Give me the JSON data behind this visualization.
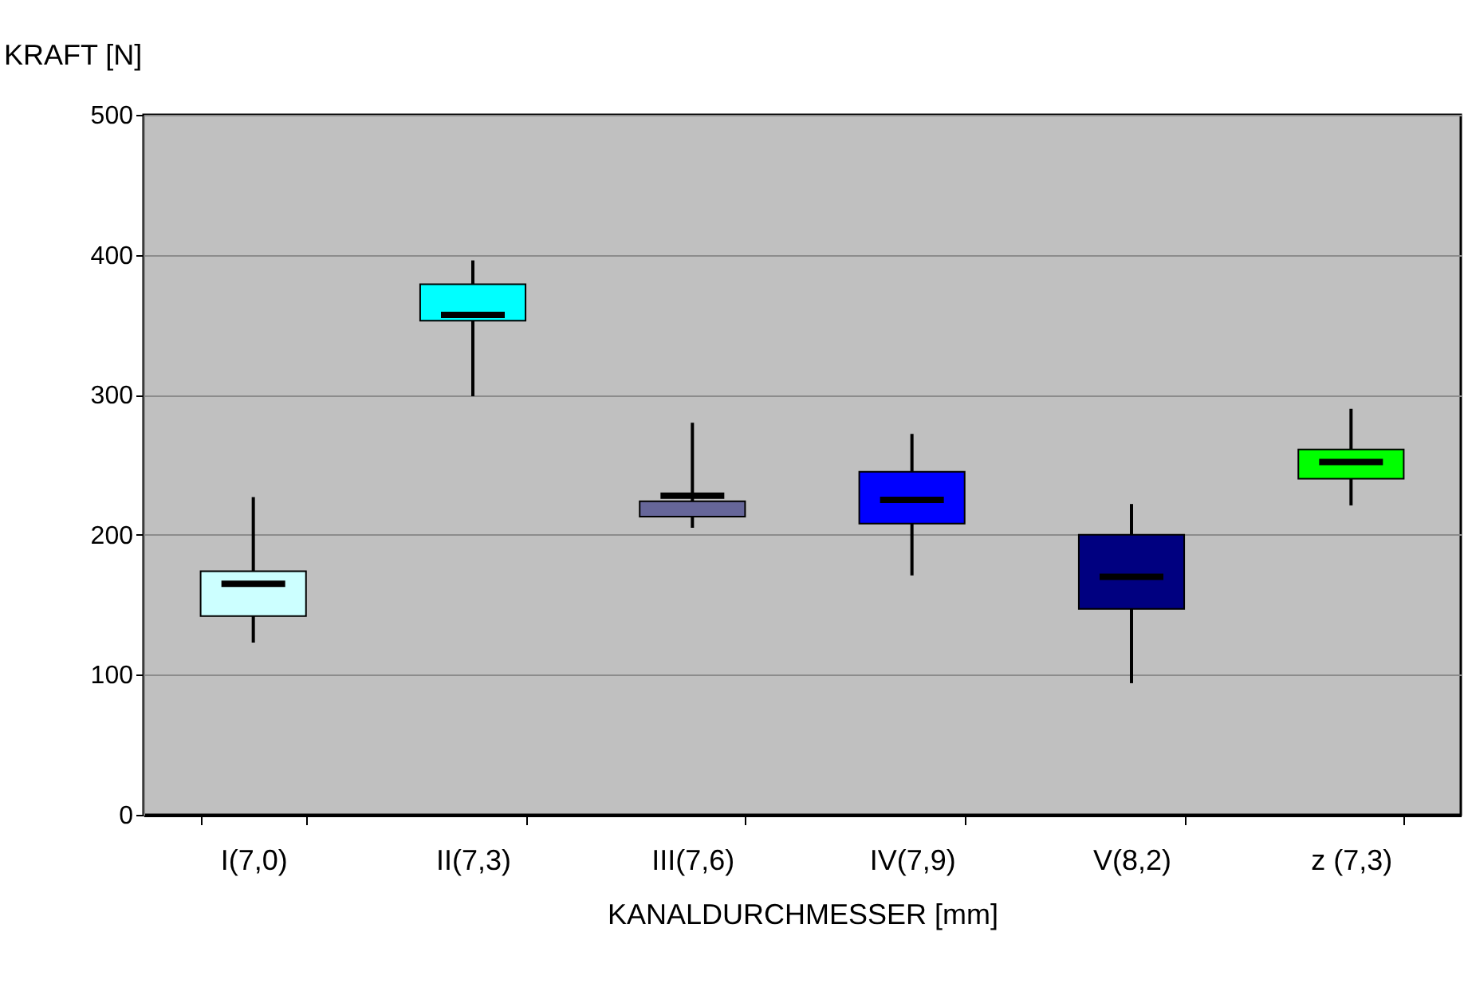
{
  "chart_data": {
    "type": "box",
    "ylabel": "KRAFT [N]",
    "xlabel": "KANALDURCHMESSER [mm]",
    "categories": [
      "I(7,0)",
      "II(7,3)",
      "III(7,6)",
      "IV(7,9)",
      "V(8,2)",
      "z (7,3)"
    ],
    "boxes": [
      {
        "low": 123,
        "q1": 142,
        "median": 165,
        "q3": 174,
        "high": 227
      },
      {
        "low": 299,
        "q1": 353,
        "median": 357,
        "q3": 379,
        "high": 396
      },
      {
        "low": 205,
        "q1": 213,
        "median": 228,
        "q3": 224,
        "high": 280
      },
      {
        "low": 171,
        "q1": 208,
        "median": 225,
        "q3": 245,
        "high": 272
      },
      {
        "low": 94,
        "q1": 147,
        "median": 170,
        "q3": 200,
        "high": 222
      },
      {
        "low": 221,
        "q1": 240,
        "median": 252,
        "q3": 261,
        "high": 290
      }
    ],
    "colors": [
      "#ccffff",
      "#00ffff",
      "#666699",
      "#0000ff",
      "#000080",
      "#00ff00"
    ],
    "ylim": [
      0,
      500
    ],
    "yticks": [
      0,
      100,
      200,
      300,
      400,
      500
    ],
    "grid": "y"
  }
}
